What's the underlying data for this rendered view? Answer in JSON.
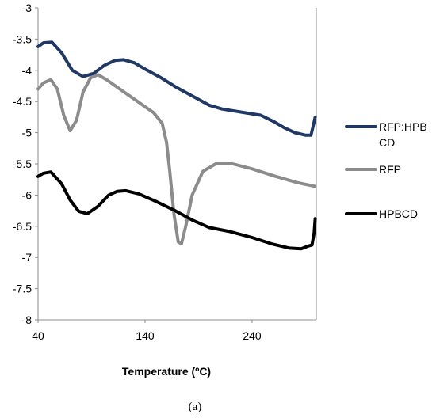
{
  "chart_data": {
    "type": "line",
    "caption": "(a)",
    "xlabel": "Temperature (ºC)",
    "ylabel": "",
    "xlim": [
      40,
      300
    ],
    "ylim": [
      -8,
      -3
    ],
    "xticks": [
      40,
      140,
      240
    ],
    "yticks": [
      -3,
      -3.5,
      -4,
      -4.5,
      -5,
      -5.5,
      -6,
      -6.5,
      -7,
      -7.5,
      -8
    ],
    "grid": false,
    "legend": "right",
    "series": [
      {
        "name": "RFP:HPBCD",
        "color": "#1f3864",
        "points": [
          [
            40,
            -3.62
          ],
          [
            45,
            -3.56
          ],
          [
            53,
            -3.55
          ],
          [
            62,
            -3.72
          ],
          [
            72,
            -4.0
          ],
          [
            82,
            -4.1
          ],
          [
            92,
            -4.05
          ],
          [
            102,
            -3.92
          ],
          [
            112,
            -3.84
          ],
          [
            120,
            -3.83
          ],
          [
            130,
            -3.88
          ],
          [
            140,
            -3.98
          ],
          [
            155,
            -4.12
          ],
          [
            170,
            -4.28
          ],
          [
            185,
            -4.42
          ],
          [
            200,
            -4.56
          ],
          [
            212,
            -4.62
          ],
          [
            230,
            -4.67
          ],
          [
            248,
            -4.72
          ],
          [
            260,
            -4.82
          ],
          [
            270,
            -4.92
          ],
          [
            280,
            -5.0
          ],
          [
            290,
            -5.04
          ],
          [
            295,
            -5.04
          ],
          [
            297,
            -4.9
          ],
          [
            299,
            -4.75
          ]
        ]
      },
      {
        "name": "RFP",
        "color": "#8c8c8c",
        "points": [
          [
            40,
            -4.3
          ],
          [
            45,
            -4.2
          ],
          [
            52,
            -4.15
          ],
          [
            58,
            -4.3
          ],
          [
            64,
            -4.72
          ],
          [
            70,
            -4.97
          ],
          [
            76,
            -4.8
          ],
          [
            82,
            -4.35
          ],
          [
            89,
            -4.12
          ],
          [
            96,
            -4.07
          ],
          [
            104,
            -4.15
          ],
          [
            118,
            -4.32
          ],
          [
            133,
            -4.5
          ],
          [
            148,
            -4.68
          ],
          [
            156,
            -4.85
          ],
          [
            160,
            -5.15
          ],
          [
            163,
            -5.6
          ],
          [
            167,
            -6.3
          ],
          [
            171,
            -6.75
          ],
          [
            174,
            -6.78
          ],
          [
            178,
            -6.5
          ],
          [
            184,
            -6.0
          ],
          [
            194,
            -5.62
          ],
          [
            206,
            -5.5
          ],
          [
            222,
            -5.5
          ],
          [
            240,
            -5.58
          ],
          [
            262,
            -5.7
          ],
          [
            282,
            -5.8
          ],
          [
            299,
            -5.86
          ]
        ]
      },
      {
        "name": "HPBCD",
        "color": "#000000",
        "points": [
          [
            40,
            -5.7
          ],
          [
            45,
            -5.65
          ],
          [
            52,
            -5.63
          ],
          [
            62,
            -5.82
          ],
          [
            70,
            -6.08
          ],
          [
            78,
            -6.26
          ],
          [
            86,
            -6.3
          ],
          [
            96,
            -6.18
          ],
          [
            106,
            -6.0
          ],
          [
            114,
            -5.94
          ],
          [
            122,
            -5.93
          ],
          [
            134,
            -5.98
          ],
          [
            150,
            -6.1
          ],
          [
            168,
            -6.25
          ],
          [
            184,
            -6.4
          ],
          [
            200,
            -6.52
          ],
          [
            218,
            -6.58
          ],
          [
            240,
            -6.68
          ],
          [
            258,
            -6.78
          ],
          [
            275,
            -6.85
          ],
          [
            286,
            -6.86
          ],
          [
            292,
            -6.82
          ],
          [
            296,
            -6.8
          ],
          [
            298,
            -6.6
          ],
          [
            299,
            -6.38
          ]
        ]
      }
    ]
  }
}
